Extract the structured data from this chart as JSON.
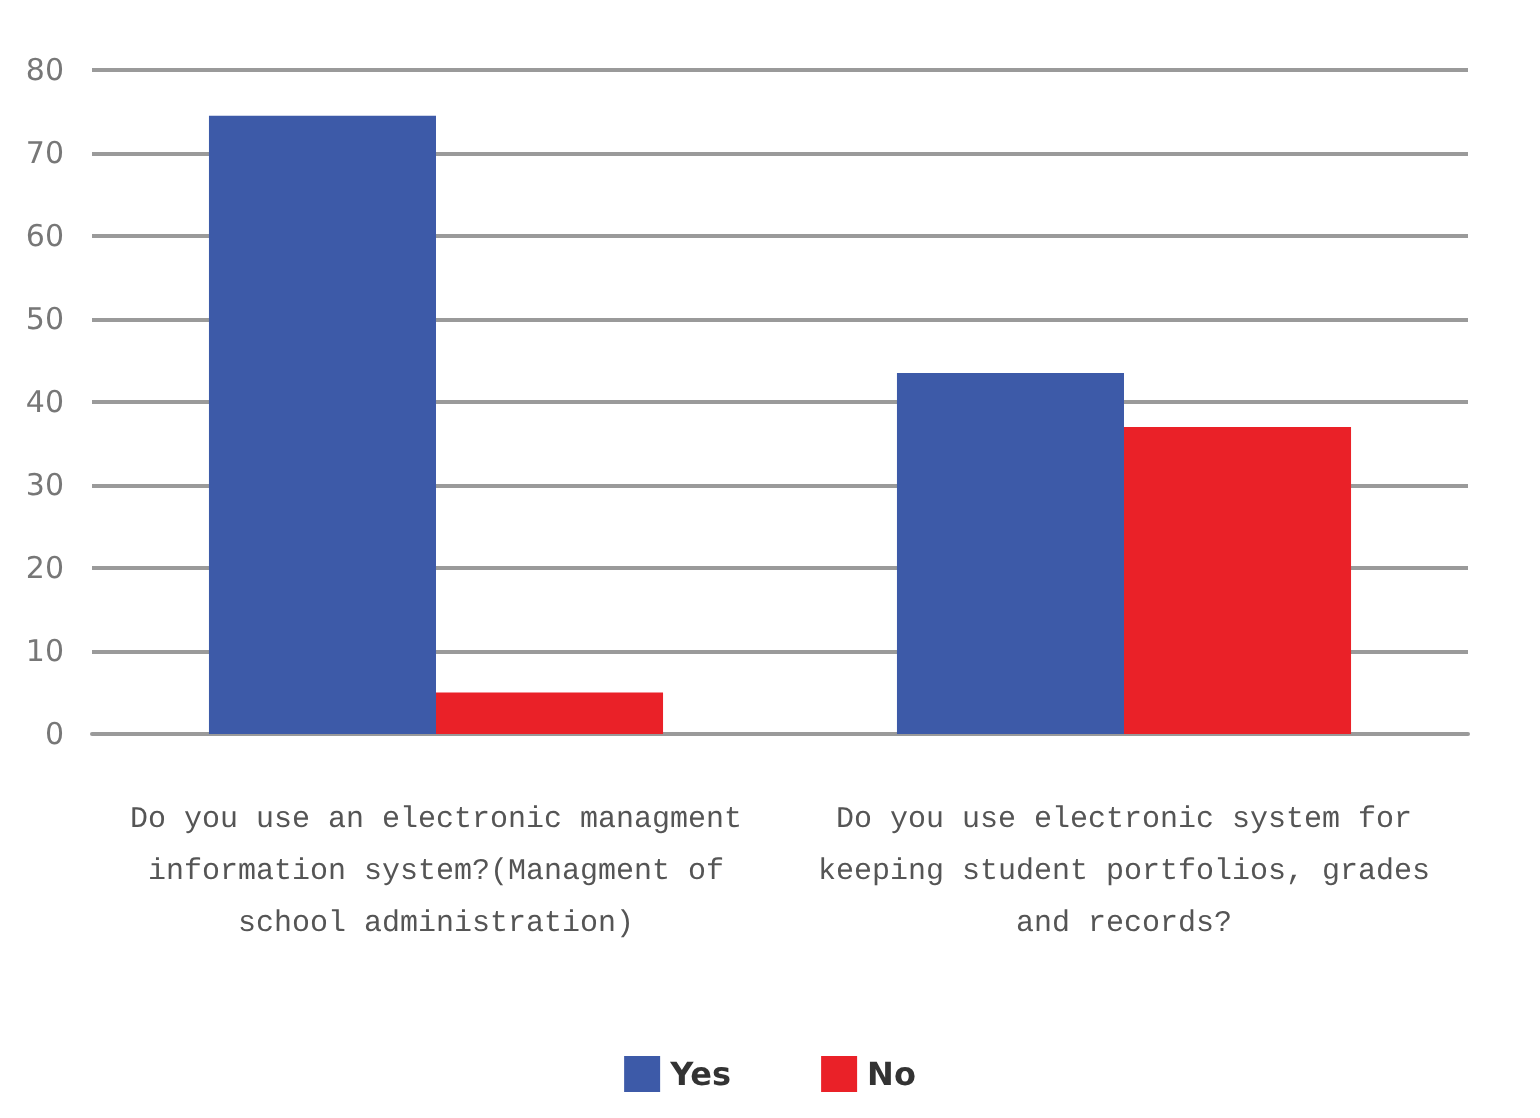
{
  "chart_data": {
    "type": "bar",
    "categories": [
      "Do you use an electronic managment information system?(Managment of school administration)",
      "Do you use electronic system for keeping student portfolios, grades and records?"
    ],
    "series": [
      {
        "name": "Yes",
        "color": "#3d5aa8",
        "values": [
          74.5,
          43.5
        ]
      },
      {
        "name": "No",
        "color": "#ea2128",
        "values": [
          5,
          37
        ]
      }
    ],
    "ylim": [
      0,
      80
    ],
    "yticks": [
      0,
      10,
      20,
      30,
      40,
      50,
      60,
      70,
      80
    ],
    "grid": "y",
    "legend": "bottom"
  }
}
